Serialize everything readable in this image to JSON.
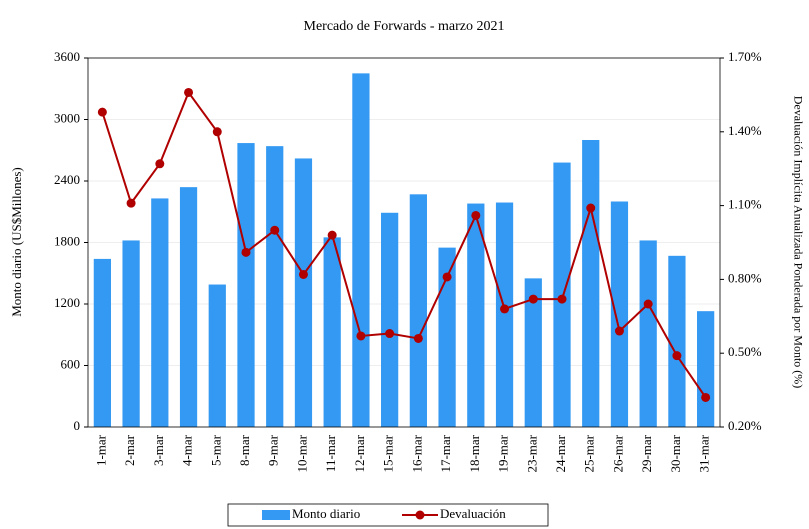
{
  "chart_data": {
    "type": "bar",
    "title": "Mercado de Forwards - marzo 2021",
    "ylabel": "Monto diario (US$Millones)",
    "y2label": "Devaluación Implícita Anualizada Ponderada por Monto (%)",
    "categories": [
      "1-mar",
      "2-mar",
      "3-mar",
      "4-mar",
      "5-mar",
      "8-mar",
      "9-mar",
      "10-mar",
      "11-mar",
      "12-mar",
      "15-mar",
      "16-mar",
      "17-mar",
      "18-mar",
      "19-mar",
      "23-mar",
      "24-mar",
      "25-mar",
      "26-mar",
      "29-mar",
      "30-mar",
      "31-mar"
    ],
    "series": [
      {
        "name": "Monto diario",
        "type": "bar",
        "color": "#3399f3",
        "values": [
          1640,
          1820,
          2230,
          2340,
          1390,
          2770,
          2740,
          2620,
          1850,
          3450,
          2090,
          2270,
          1750,
          2180,
          2190,
          1450,
          2580,
          2800,
          2200,
          1820,
          1670,
          1130
        ]
      },
      {
        "name": "Devaluación",
        "type": "line",
        "axis": "y2",
        "color": "#b00000",
        "values": [
          1.48,
          1.11,
          1.27,
          1.56,
          1.4,
          0.91,
          1.0,
          0.82,
          0.98,
          0.57,
          0.58,
          0.56,
          0.81,
          1.06,
          0.68,
          0.72,
          0.72,
          1.09,
          0.59,
          0.7,
          0.49,
          0.32
        ]
      }
    ],
    "ylim": [
      0,
      3600
    ],
    "yticks": [
      0,
      600,
      1200,
      1800,
      2400,
      3000,
      3600
    ],
    "y2lim": [
      0.2,
      1.7
    ],
    "y2ticks": [
      {
        "value": 0.2,
        "label": "0.20%"
      },
      {
        "value": 0.5,
        "label": "0.50%"
      },
      {
        "value": 0.8,
        "label": "0.80%"
      },
      {
        "value": 1.1,
        "label": "1.10%"
      },
      {
        "value": 1.4,
        "label": "1.40%"
      },
      {
        "value": 1.7,
        "label": "1.70%"
      }
    ],
    "grid": true,
    "legend": "bottom"
  }
}
